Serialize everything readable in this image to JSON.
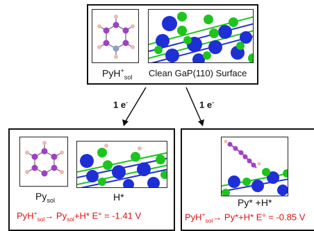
{
  "top": {
    "pyh_label": "PyH",
    "pyh_sup": "+",
    "pyh_sub": "sol",
    "surface_label": "Clean GaP(110) Surface"
  },
  "arrows": {
    "left_label": "1 e",
    "right_label": "1 e",
    "minus": "-"
  },
  "left": {
    "py_label": "Py",
    "py_sub": "sol",
    "h_label": "H*",
    "reaction": {
      "a": "PyH",
      "a_sup": "+",
      "a_sub": "sol",
      "arrow": "→",
      "b": " Py",
      "b_sub": "sol",
      "c": "+H* E° = -1.41 V"
    }
  },
  "right": {
    "label": "Py* +H*",
    "reaction": {
      "a": "PyH",
      "a_sup": "+",
      "a_sub": "sol",
      "arrow": "→",
      "b": " Py*+H* E° = -0.85 V"
    }
  },
  "colors": {
    "ga": "#1f2fd6",
    "p": "#1ec41e",
    "carbon": "#a040c8",
    "nitrogen": "#8fa0c8",
    "hydrogen": "#f0b8b8",
    "reaction": "#e01010"
  }
}
